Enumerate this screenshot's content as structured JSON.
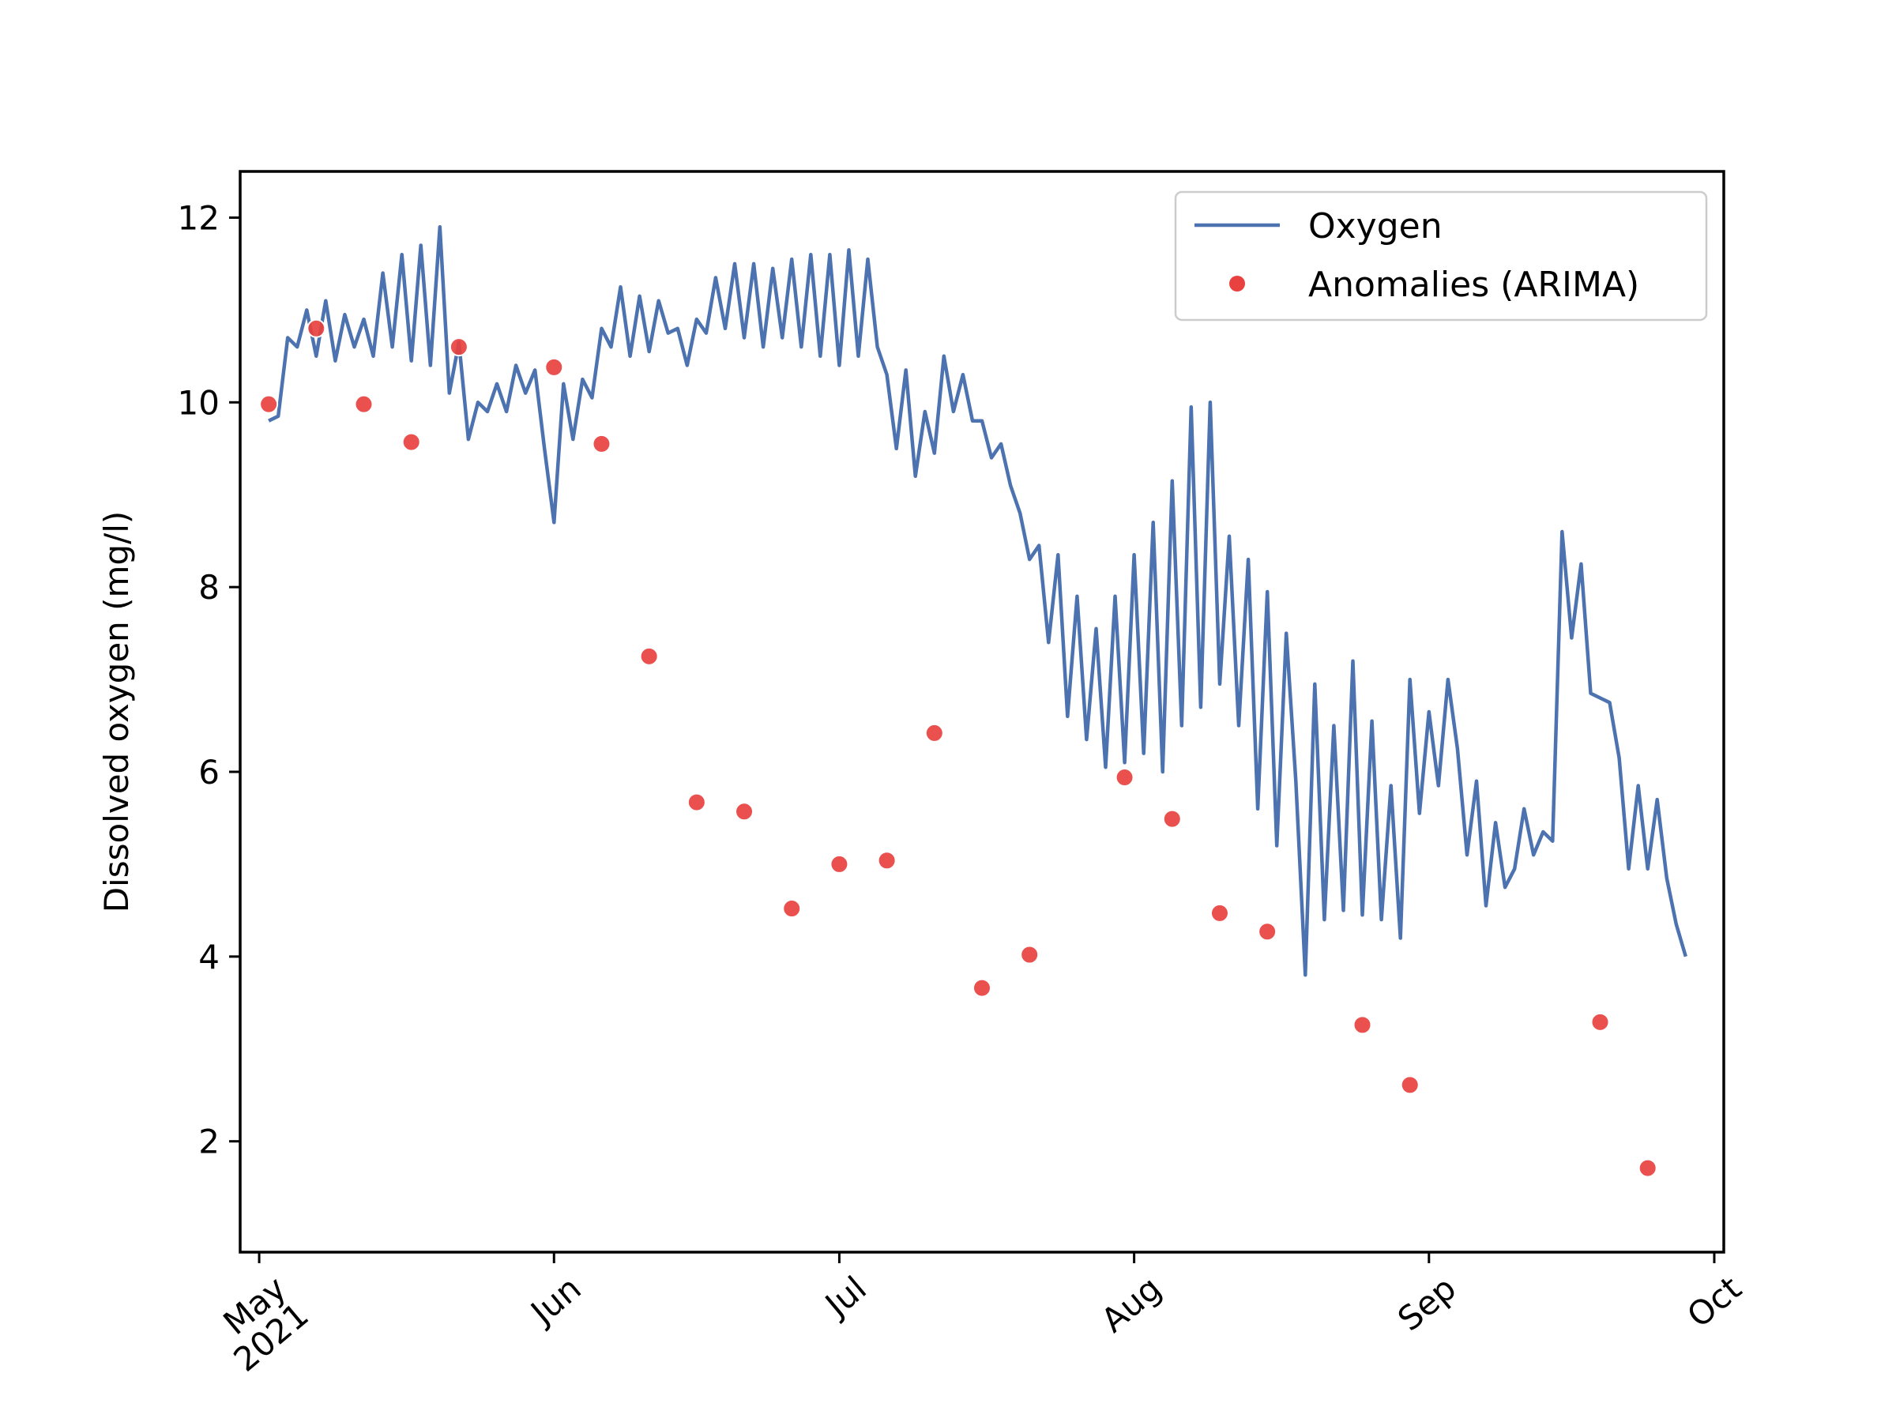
{
  "chart_data": {
    "type": "line",
    "title": "",
    "xlabel": "",
    "ylabel": "Dissolved oxygen (mg/l)",
    "xlim": [
      "2021-04-29",
      "2021-10-02"
    ],
    "ylim": [
      0.8,
      12.5
    ],
    "yticks": [
      2,
      4,
      6,
      8,
      10,
      12
    ],
    "xticks": [
      {
        "date": "2021-05-01",
        "label": "May",
        "label2": "2021"
      },
      {
        "date": "2021-06-01",
        "label": "Jun"
      },
      {
        "date": "2021-07-01",
        "label": "Jul"
      },
      {
        "date": "2021-08-01",
        "label": "Aug"
      },
      {
        "date": "2021-09-01",
        "label": "Sep"
      },
      {
        "date": "2021-10-01",
        "label": "Oct"
      }
    ],
    "grid": false,
    "legend_position": "top-right",
    "series": [
      {
        "name": "Oxygen",
        "kind": "line",
        "color": "#4c72b0",
        "points": [
          [
            "2021-05-02",
            9.8
          ],
          [
            "2021-05-03",
            9.85
          ],
          [
            "2021-05-04",
            10.7
          ],
          [
            "2021-05-05",
            10.6
          ],
          [
            "2021-05-06",
            11.0
          ],
          [
            "2021-05-07",
            10.5
          ],
          [
            "2021-05-08",
            11.1
          ],
          [
            "2021-05-09",
            10.45
          ],
          [
            "2021-05-10",
            10.95
          ],
          [
            "2021-05-11",
            10.6
          ],
          [
            "2021-05-12",
            10.9
          ],
          [
            "2021-05-13",
            10.5
          ],
          [
            "2021-05-14",
            11.4
          ],
          [
            "2021-05-15",
            10.6
          ],
          [
            "2021-05-16",
            11.6
          ],
          [
            "2021-05-17",
            10.45
          ],
          [
            "2021-05-18",
            11.7
          ],
          [
            "2021-05-19",
            10.4
          ],
          [
            "2021-05-20",
            11.9
          ],
          [
            "2021-05-21",
            10.1
          ],
          [
            "2021-05-22",
            10.65
          ],
          [
            "2021-05-23",
            9.6
          ],
          [
            "2021-05-24",
            10.0
          ],
          [
            "2021-05-25",
            9.9
          ],
          [
            "2021-05-26",
            10.2
          ],
          [
            "2021-05-27",
            9.9
          ],
          [
            "2021-05-28",
            10.4
          ],
          [
            "2021-05-29",
            10.1
          ],
          [
            "2021-05-30",
            10.35
          ],
          [
            "2021-05-31",
            9.5
          ],
          [
            "2021-06-01",
            8.7
          ],
          [
            "2021-06-02",
            10.2
          ],
          [
            "2021-06-03",
            9.6
          ],
          [
            "2021-06-04",
            10.25
          ],
          [
            "2021-06-05",
            10.05
          ],
          [
            "2021-06-06",
            10.8
          ],
          [
            "2021-06-07",
            10.6
          ],
          [
            "2021-06-08",
            11.25
          ],
          [
            "2021-06-09",
            10.5
          ],
          [
            "2021-06-10",
            11.15
          ],
          [
            "2021-06-11",
            10.55
          ],
          [
            "2021-06-12",
            11.1
          ],
          [
            "2021-06-13",
            10.75
          ],
          [
            "2021-06-14",
            10.8
          ],
          [
            "2021-06-15",
            10.4
          ],
          [
            "2021-06-16",
            10.9
          ],
          [
            "2021-06-17",
            10.75
          ],
          [
            "2021-06-18",
            11.35
          ],
          [
            "2021-06-19",
            10.8
          ],
          [
            "2021-06-20",
            11.5
          ],
          [
            "2021-06-21",
            10.7
          ],
          [
            "2021-06-22",
            11.5
          ],
          [
            "2021-06-23",
            10.6
          ],
          [
            "2021-06-24",
            11.45
          ],
          [
            "2021-06-25",
            10.7
          ],
          [
            "2021-06-26",
            11.55
          ],
          [
            "2021-06-27",
            10.6
          ],
          [
            "2021-06-28",
            11.6
          ],
          [
            "2021-06-29",
            10.5
          ],
          [
            "2021-06-30",
            11.6
          ],
          [
            "2021-07-01",
            10.4
          ],
          [
            "2021-07-02",
            11.65
          ],
          [
            "2021-07-03",
            10.5
          ],
          [
            "2021-07-04",
            11.55
          ],
          [
            "2021-07-05",
            10.6
          ],
          [
            "2021-07-06",
            10.3
          ],
          [
            "2021-07-07",
            9.5
          ],
          [
            "2021-07-08",
            10.35
          ],
          [
            "2021-07-09",
            9.2
          ],
          [
            "2021-07-10",
            9.9
          ],
          [
            "2021-07-11",
            9.45
          ],
          [
            "2021-07-12",
            10.5
          ],
          [
            "2021-07-13",
            9.9
          ],
          [
            "2021-07-14",
            10.3
          ],
          [
            "2021-07-15",
            9.8
          ],
          [
            "2021-07-16",
            9.8
          ],
          [
            "2021-07-17",
            9.4
          ],
          [
            "2021-07-18",
            9.55
          ],
          [
            "2021-07-19",
            9.1
          ],
          [
            "2021-07-20",
            8.8
          ],
          [
            "2021-07-21",
            8.3
          ],
          [
            "2021-07-22",
            8.45
          ],
          [
            "2021-07-23",
            7.4
          ],
          [
            "2021-07-24",
            8.35
          ],
          [
            "2021-07-25",
            6.6
          ],
          [
            "2021-07-26",
            7.9
          ],
          [
            "2021-07-27",
            6.35
          ],
          [
            "2021-07-28",
            7.55
          ],
          [
            "2021-07-29",
            6.05
          ],
          [
            "2021-07-30",
            7.9
          ],
          [
            "2021-07-31",
            6.1
          ],
          [
            "2021-08-01",
            8.35
          ],
          [
            "2021-08-02",
            6.2
          ],
          [
            "2021-08-03",
            8.7
          ],
          [
            "2021-08-04",
            6.0
          ],
          [
            "2021-08-05",
            9.15
          ],
          [
            "2021-08-06",
            6.5
          ],
          [
            "2021-08-07",
            9.95
          ],
          [
            "2021-08-08",
            6.7
          ],
          [
            "2021-08-09",
            10.0
          ],
          [
            "2021-08-10",
            6.95
          ],
          [
            "2021-08-11",
            8.55
          ],
          [
            "2021-08-12",
            6.5
          ],
          [
            "2021-08-13",
            8.3
          ],
          [
            "2021-08-14",
            5.6
          ],
          [
            "2021-08-15",
            7.95
          ],
          [
            "2021-08-16",
            5.2
          ],
          [
            "2021-08-17",
            7.5
          ],
          [
            "2021-08-18",
            5.9
          ],
          [
            "2021-08-19",
            3.8
          ],
          [
            "2021-08-20",
            6.95
          ],
          [
            "2021-08-21",
            4.4
          ],
          [
            "2021-08-22",
            6.5
          ],
          [
            "2021-08-23",
            4.5
          ],
          [
            "2021-08-24",
            7.2
          ],
          [
            "2021-08-25",
            4.45
          ],
          [
            "2021-08-26",
            6.55
          ],
          [
            "2021-08-27",
            4.4
          ],
          [
            "2021-08-28",
            5.85
          ],
          [
            "2021-08-29",
            4.2
          ],
          [
            "2021-08-30",
            7.0
          ],
          [
            "2021-08-31",
            5.55
          ],
          [
            "2021-09-01",
            6.65
          ],
          [
            "2021-09-02",
            5.85
          ],
          [
            "2021-09-03",
            7.0
          ],
          [
            "2021-09-04",
            6.25
          ],
          [
            "2021-09-05",
            5.1
          ],
          [
            "2021-09-06",
            5.9
          ],
          [
            "2021-09-07",
            4.55
          ],
          [
            "2021-09-08",
            5.45
          ],
          [
            "2021-09-09",
            4.75
          ],
          [
            "2021-09-10",
            4.95
          ],
          [
            "2021-09-11",
            5.6
          ],
          [
            "2021-09-12",
            5.1
          ],
          [
            "2021-09-13",
            5.35
          ],
          [
            "2021-09-14",
            5.25
          ],
          [
            "2021-09-15",
            8.6
          ],
          [
            "2021-09-16",
            7.45
          ],
          [
            "2021-09-17",
            8.25
          ],
          [
            "2021-09-18",
            6.85
          ],
          [
            "2021-09-19",
            6.8
          ],
          [
            "2021-09-20",
            6.75
          ],
          [
            "2021-09-21",
            6.15
          ],
          [
            "2021-09-22",
            4.95
          ],
          [
            "2021-09-23",
            5.85
          ],
          [
            "2021-09-24",
            4.95
          ],
          [
            "2021-09-25",
            5.7
          ],
          [
            "2021-09-26",
            4.85
          ],
          [
            "2021-09-27",
            4.35
          ],
          [
            "2021-09-28",
            4.0
          ]
        ],
        "points_note": "Oxygen"
      },
      {
        "name": "Anomalies (ARIMA)",
        "kind": "scatter",
        "color": "#e8413f",
        "points": [
          [
            "2021-05-02",
            9.98
          ],
          [
            "2021-05-07",
            10.8
          ],
          [
            "2021-05-12",
            9.98
          ],
          [
            "2021-05-17",
            9.57
          ],
          [
            "2021-05-22",
            10.6
          ],
          [
            "2021-06-01",
            10.38
          ],
          [
            "2021-06-06",
            9.55
          ],
          [
            "2021-06-11",
            7.25
          ],
          [
            "2021-06-16",
            5.67
          ],
          [
            "2021-06-21",
            5.57
          ],
          [
            "2021-06-26",
            4.52
          ],
          [
            "2021-07-01",
            5.0
          ],
          [
            "2021-07-06",
            5.04
          ],
          [
            "2021-07-11",
            6.42
          ],
          [
            "2021-07-16",
            3.66
          ],
          [
            "2021-07-21",
            4.02
          ],
          [
            "2021-07-31",
            5.94
          ],
          [
            "2021-08-05",
            5.49
          ],
          [
            "2021-08-10",
            4.47
          ],
          [
            "2021-08-15",
            4.27
          ],
          [
            "2021-08-25",
            3.26
          ],
          [
            "2021-08-30",
            2.61
          ],
          [
            "2021-09-19",
            3.29
          ],
          [
            "2021-09-24",
            1.71
          ]
        ]
      }
    ]
  }
}
